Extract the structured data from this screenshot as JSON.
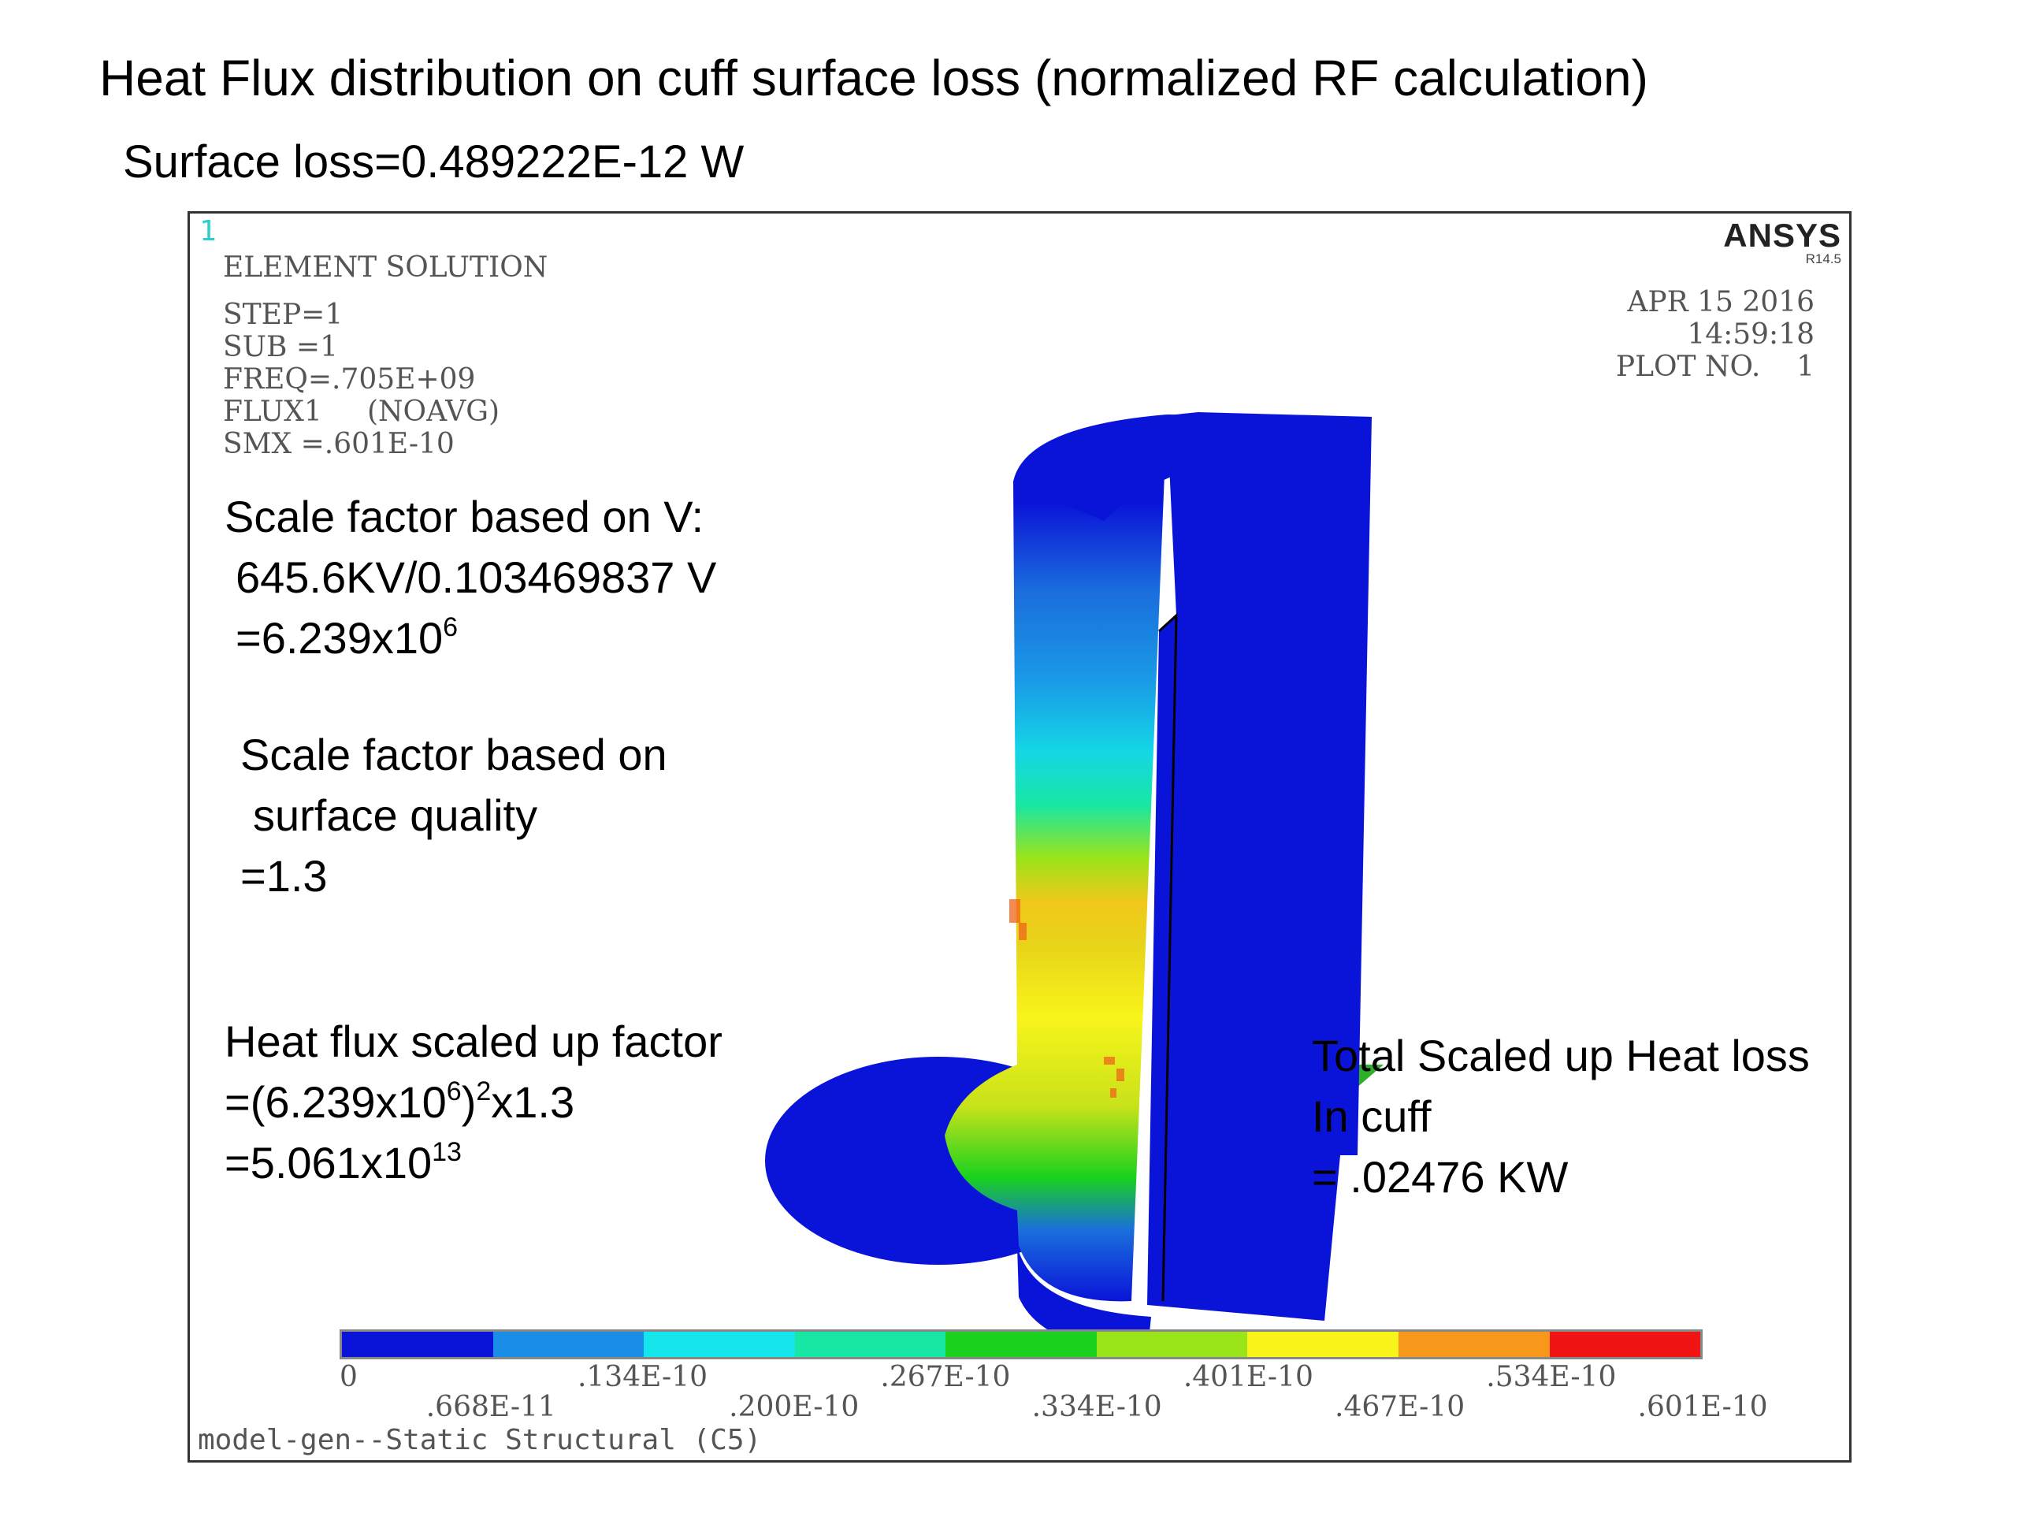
{
  "slide": {
    "title": "Heat Flux distribution on cuff surface loss (normalized RF calculation)",
    "subtitle": "Surface loss=0.489222E-12 W"
  },
  "plot": {
    "window_number": "1",
    "logo": "ANSYS",
    "version": "R14.5",
    "solution_title": "ELEMENT SOLUTION",
    "info_lines": [
      "STEP=1",
      "SUB =1",
      "FREQ=.705E+09",
      "FLUX1     (NOAVG)",
      "SMX =.601E-10"
    ],
    "date": "APR 15 2016",
    "time": "14:59:18",
    "plot_no": "PLOT NO.    1",
    "footer": "model-gen--Static Structural (C5)"
  },
  "annotations": {
    "scale_v": {
      "line1": "Scale factor based on V:",
      "line2": "645.6KV/0.103469837 V",
      "line3_base": "=6.239x10",
      "line3_exp": "6"
    },
    "scale_q": {
      "line1": "Scale factor based on",
      "line2": "surface quality",
      "line3": "=1.3"
    },
    "heat_flux": {
      "line1": "Heat flux scaled up factor",
      "line2_a": "=(6.239x10",
      "line2_exp1": "6",
      "line2_b": ")",
      "line2_exp2": "2",
      "line2_c": "x1.3",
      "line3_base": "=5.061x10",
      "line3_exp": "13"
    },
    "total": {
      "line1": "Total Scaled up Heat loss",
      "line2": "In cuff",
      "line3": "= .02476 KW"
    }
  },
  "legend": {
    "colors": [
      "#0a14d8",
      "#1a8ee6",
      "#14e6ec",
      "#18e6a4",
      "#1ad21e",
      "#9ae41a",
      "#f8f41a",
      "#f8981a",
      "#f01414"
    ],
    "top_labels": [
      "0",
      ".134E-10",
      ".267E-10",
      ".401E-10",
      ".534E-10"
    ],
    "bottom_labels": [
      ".668E-11",
      ".200E-10",
      ".334E-10",
      ".467E-10",
      ".601E-10"
    ]
  }
}
